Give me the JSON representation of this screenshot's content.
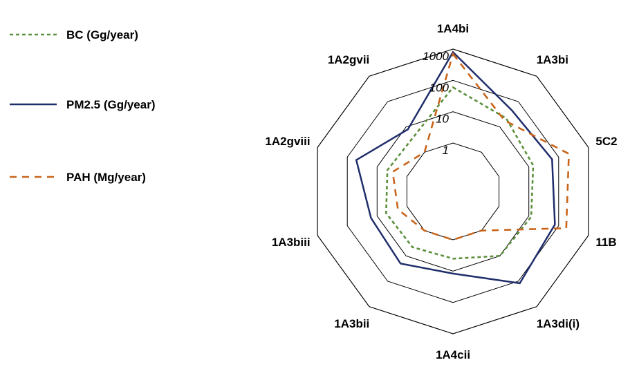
{
  "chart_data": {
    "type": "radar",
    "scale": "log",
    "rmin": 1,
    "rmax": 1000,
    "ticks": [
      "1",
      "10",
      "100",
      "1000"
    ],
    "tick_values": [
      1,
      10,
      100,
      1000
    ],
    "categories": [
      "1A4bi",
      "1A3bi",
      "5C2",
      "11B",
      "1A3di(i)",
      "1A4cii",
      "1A3bii",
      "1A3biii",
      "1A2gviii",
      "1A2gvii"
    ],
    "legend_position": "left",
    "grid": true,
    "series": [
      {
        "name": "BC (Gg/year)",
        "color": "#5b8f3a",
        "style": "short-dash",
        "values": [
          60,
          22,
          14,
          12,
          10,
          4,
          4.5,
          5,
          4.5,
          4
        ]
      },
      {
        "name": "PM2.5 (Gg/year)",
        "color": "#1f2d6b",
        "style": "solid",
        "values": [
          800,
          45,
          60,
          75,
          120,
          12,
          20,
          16,
          50,
          8
        ]
      },
      {
        "name": "PAH (Mg/year)",
        "color": "#c8651b",
        "style": "long-dash",
        "values": [
          700,
          18,
          220,
          180,
          1,
          1,
          1,
          2,
          3,
          1
        ]
      }
    ]
  }
}
